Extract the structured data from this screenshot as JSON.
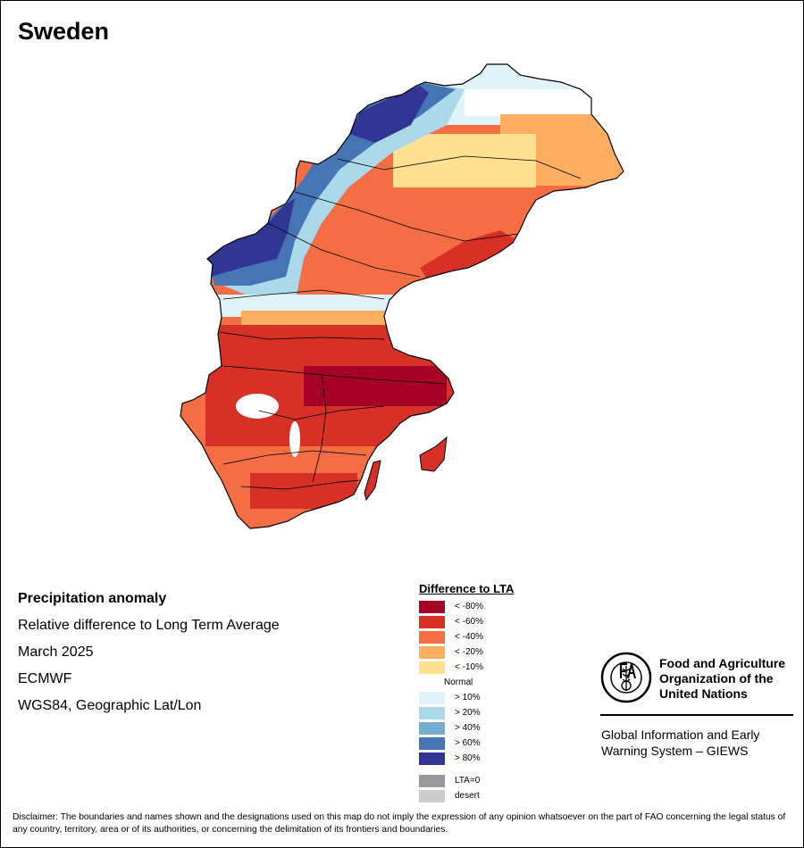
{
  "title": "Sweden",
  "info": {
    "heading": "Precipitation anomaly",
    "subtitle": "Relative difference to Long Term Average",
    "period": "March 2025",
    "source": "ECMWF",
    "projection": "WGS84, Geographic Lat/Lon"
  },
  "legend": {
    "title": "Difference to LTA",
    "items": [
      {
        "label": "< -80%",
        "color": "#a50026"
      },
      {
        "label": "< -60%",
        "color": "#d73027"
      },
      {
        "label": "< -40%",
        "color": "#f46d43"
      },
      {
        "label": "< -20%",
        "color": "#fdae61"
      },
      {
        "label": "< -10%",
        "color": "#fee090"
      },
      {
        "label": "Normal",
        "color": "#ffffff"
      },
      {
        "label": "> 10%",
        "color": "#e0f3f8"
      },
      {
        "label": "> 20%",
        "color": "#abd9e9"
      },
      {
        "label": "> 40%",
        "color": "#74add1"
      },
      {
        "label": "> 60%",
        "color": "#4575b4"
      },
      {
        "label": "> 80%",
        "color": "#313695"
      }
    ],
    "extra": [
      {
        "label": "LTA=0",
        "color": "#999999"
      },
      {
        "label": "desert",
        "color": "#cccccc"
      }
    ]
  },
  "organization": {
    "name_line1": "Food and Agriculture",
    "name_line2": "Organization of the",
    "name_line3": "United Nations",
    "logo_text": "FIAT PANIS",
    "system_line1": "Global Information and Early",
    "system_line2": "Warning System – GIEWS"
  },
  "disclaimer": "Disclaimer: The boundaries and names shown and the designations used on this map do not imply the expression of any opinion whatsoever on the part of FAO concerning the legal status of any country, territory, area or of its authorities, or concerning the delimitation of its frontiers and boundaries.",
  "anomaly_zones": [
    {
      "zone": "far-north-east",
      "class": "> 10%"
    },
    {
      "zone": "north-east-coast",
      "class": "< -20%"
    },
    {
      "zone": "north-west-mountains",
      "class": "> 80%"
    },
    {
      "zone": "central-north",
      "class": "< -40%"
    },
    {
      "zone": "central-west-mountains",
      "class": "> 60%"
    },
    {
      "zone": "central-east-coast",
      "class": "< -60%"
    },
    {
      "zone": "central-south",
      "class": "< -60%"
    },
    {
      "zone": "stockholm-uppsala",
      "class": "< -80%"
    },
    {
      "zone": "far-south",
      "class": "< -40%"
    },
    {
      "zone": "gotland",
      "class": "< -60%"
    }
  ]
}
